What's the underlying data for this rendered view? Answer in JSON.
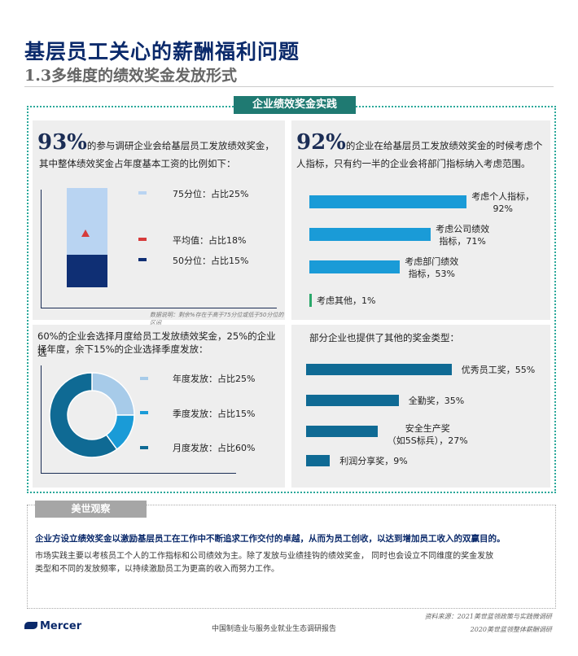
{
  "title": "基层员工关心的薪酬福利问题",
  "subtitle": "1.3多维度的绩效奖金发放形式",
  "frame_tag": "企业绩效奖金实践",
  "panel_tl": {
    "big": "93%",
    "text1": "的参与调研企业会给基层员工发放绩效奖金，",
    "text2": "其中整体绩效奖金占年度基本工资的比例如下：",
    "legend": [
      {
        "label": "75分位：占比25%",
        "color": "#b9d4f2"
      },
      {
        "label": "平均值：占比18%",
        "color": "#d63b3b"
      },
      {
        "label": "50分位：占比15%",
        "color": "#0f2f74"
      }
    ],
    "note": "数据说明：剩余%存在于高于75分位或低于50分位的区间"
  },
  "panel_tr": {
    "big": "92%",
    "text1": "的企业在给基层员工发放绩效奖金的时候考虑个",
    "text2": "人指标，只有约一半的企业会将部门指标纳入考虑范围。",
    "bars": [
      {
        "label1": "考虑个人指标，",
        "label2": "92%",
        "value": 92
      },
      {
        "label1": "考虑公司绩效",
        "label2": "指标，71%",
        "value": 71
      },
      {
        "label1": "考虑部门绩效",
        "label2": "指标，53%",
        "value": 53
      },
      {
        "label1": "考虑其他，1%",
        "label2": "",
        "value": 1
      }
    ]
  },
  "panel_bl": {
    "text1": "60%的企业会选择月度给员工发放绩效奖金，25%的企业选",
    "text2": "择年度，余下15%的企业选择季度发放：",
    "legend": [
      {
        "label": "年度发放：占比25%",
        "value": 25,
        "color": "#a7cbe9"
      },
      {
        "label": "季度发放：占比15%",
        "value": 15,
        "color": "#1a9bd7"
      },
      {
        "label": "月度发放：占比60%",
        "value": 60,
        "color": "#0f6a94"
      }
    ]
  },
  "panel_br": {
    "text1": "部分企业也提供了其他的奖金类型：",
    "bars": [
      {
        "label1": "优秀员工奖，55%",
        "label2": "",
        "value": 55
      },
      {
        "label1": "全勤奖，35%",
        "label2": "",
        "value": 35
      },
      {
        "label1": "安全生产奖",
        "label2": "（如5S标兵），27%",
        "value": 27
      },
      {
        "label1": "利润分享奖，9%",
        "label2": "",
        "value": 9
      }
    ]
  },
  "observation": {
    "tag": "美世观察",
    "bold": "企业方设立绩效奖金以激励基层员工在工作中不断追求工作交付的卓越，从而为员工创收，以达到增加员工收入的双赢目的。",
    "body1": "市场实践主要以考核员工个人的工作指标和公司绩效为主。除了发放与业绩挂钩的绩效奖金， 同时也会设立不同维度的奖金发放",
    "body2": "类型和不同的发放频率，以持续激励员工为更高的收入而努力工作。"
  },
  "source1": "资料来源：2021美世蓝领政策与实践微调研",
  "source2": "2020美世蓝领整体薪酬调研",
  "footer": "中国制造业与服务业就业生态调研报告",
  "logo": "Mercer",
  "chart_data": [
    {
      "type": "bar",
      "title": "",
      "categories": [
        "考虑个人指标",
        "考虑公司绩效指标",
        "考虑部门绩效指标",
        "考虑其他"
      ],
      "values": [
        92,
        71,
        53,
        1
      ]
    },
    {
      "type": "pie",
      "categories": [
        "年度发放",
        "季度发放",
        "月度发放"
      ],
      "values": [
        25,
        15,
        60
      ]
    },
    {
      "type": "bar",
      "categories": [
        "优秀员工奖",
        "全勤奖",
        "安全生产奖（如5S标兵）",
        "利润分享奖"
      ],
      "values": [
        55,
        35,
        27,
        9
      ]
    }
  ]
}
